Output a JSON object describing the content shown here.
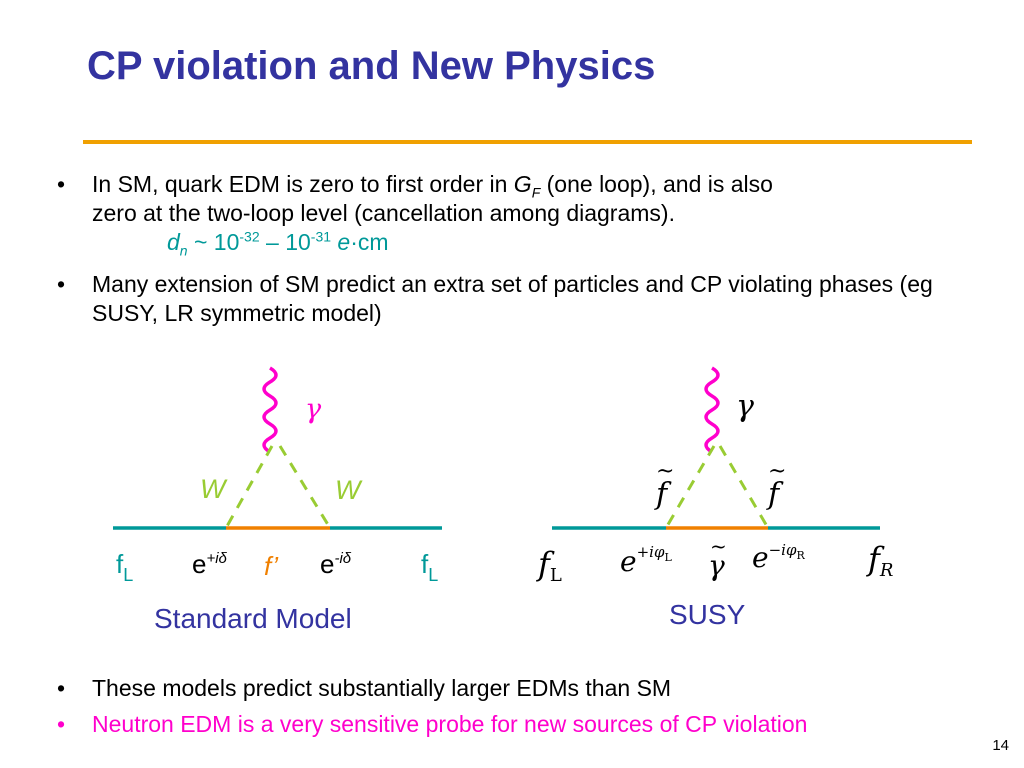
{
  "title": "CP violation and New Physics",
  "bullets": {
    "b1_line1_pre": "In SM, quark EDM is zero to first order in ",
    "b1_G": "G",
    "b1_F": "F",
    "b1_line1_post": " (one loop),  and is also",
    "b1_line2": "zero at the two-loop level (cancellation among diagrams).",
    "b1_formula_d": "d",
    "b1_formula_n": "n",
    "b1_formula_mid": " ~ 10",
    "b1_formula_exp1": "-32",
    "b1_formula_dash": " – 10",
    "b1_formula_exp2": "-31",
    "b1_formula_e": " e",
    "b1_formula_unit": "·cm",
    "b2": "Many extension of SM predict an extra set of particles and CP violating phases (eg SUSY, LR symmetric model)",
    "b3": "These models predict substantially larger EDMs than SM",
    "b4": "Neutron EDM is a very sensitive probe for new sources of CP violation",
    "bullet_char": "•"
  },
  "sm_diagram": {
    "gamma": "γ",
    "w_left": "W",
    "w_right": "W",
    "fL_left_f": "f",
    "fL_left_sub": "L",
    "e_left": "e",
    "e_left_exp": "+iδ",
    "f_prime": "f’",
    "e_right": "e",
    "e_right_exp": "-iδ",
    "fL_right_f": "f",
    "fL_right_sub": "L",
    "caption": "Standard Model"
  },
  "susy_diagram": {
    "gamma": "γ",
    "f_tilde_left": "f",
    "f_tilde_right": "f",
    "tilde": "~",
    "fL_f": "f",
    "fL_sub": "L",
    "e_left": "e",
    "e_left_exp": "+iφ",
    "e_left_exp_sub": "L",
    "gamma_tilde": "γ",
    "e_right": "e",
    "e_right_exp": "−iφ",
    "e_right_exp_sub": "R",
    "fR_f": "f",
    "fR_sub": "R",
    "caption": "SUSY"
  },
  "page_number": "14",
  "colors": {
    "title": "#3333a0",
    "rule": "#f0a000",
    "teal": "#009999",
    "magenta": "#ff00cc",
    "green_w": "#99cc33",
    "orange": "#f08000",
    "caption_blue": "#3333a0"
  }
}
